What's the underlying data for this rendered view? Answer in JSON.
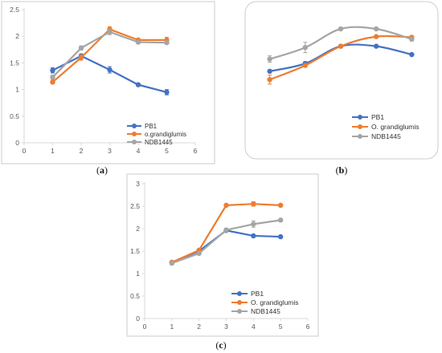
{
  "colors": {
    "PB1": "#4472C4",
    "orange": "#ED7D31",
    "gray": "#A5A5A5",
    "axis": "#d9d9d9",
    "panel_border": "#bfbfbf",
    "tick_text": "#595959"
  },
  "chart_data": [
    {
      "type": "line",
      "panel_label": "a",
      "x": [
        1,
        2,
        3,
        4,
        5
      ],
      "xlim": [
        0,
        6
      ],
      "xticks": [
        0,
        1,
        2,
        3,
        4,
        5,
        6
      ],
      "ylim": [
        0,
        2.5
      ],
      "yticks": [
        "0",
        "0.5",
        "1",
        "1.5",
        "2",
        "2.5"
      ],
      "show_axes": true,
      "legend_position": "bottom-right",
      "series": [
        {
          "name": "PB1",
          "color_key": "PB1",
          "values": [
            1.36,
            1.63,
            1.37,
            1.09,
            0.95
          ],
          "errors": [
            0.05,
            0.04,
            0.06,
            0.02,
            0.05
          ]
        },
        {
          "name": "o.grandiglumis",
          "color_key": "orange",
          "values": [
            1.14,
            1.6,
            2.13,
            1.93,
            1.93
          ],
          "errors": [
            0.03,
            0.05,
            0.05,
            0.03,
            0.05
          ]
        },
        {
          "name": "NDB1445",
          "color_key": "gray",
          "values": [
            1.23,
            1.78,
            2.08,
            1.89,
            1.88
          ],
          "errors": [
            0.04,
            0.04,
            0.05,
            0.03,
            0.03
          ]
        }
      ]
    },
    {
      "type": "line",
      "panel_label": "b",
      "x": [
        1,
        2,
        3,
        4,
        5
      ],
      "xlim": [
        0.6,
        5.4
      ],
      "xticks": [],
      "ylim": [
        0.9,
        2.5
      ],
      "yticks": [],
      "show_axes": false,
      "smooth": true,
      "legend_position": "bottom-center",
      "series": [
        {
          "name": "PB1",
          "color_key": "PB1",
          "values": [
            1.54,
            1.66,
            1.93,
            1.93,
            1.8
          ],
          "errors": [
            0,
            0.03,
            0,
            0,
            0
          ]
        },
        {
          "name": "O. grandiglumis",
          "color_key": "orange",
          "values": [
            1.41,
            1.63,
            1.93,
            2.08,
            2.07
          ],
          "errors": [
            0.07,
            0,
            0,
            0,
            0
          ]
        },
        {
          "name": "NDB1445",
          "color_key": "gray",
          "values": [
            1.73,
            1.91,
            2.2,
            2.2,
            2.04
          ],
          "errors": [
            0.05,
            0.08,
            0,
            0,
            0.03
          ]
        }
      ]
    },
    {
      "type": "line",
      "panel_label": "c",
      "x": [
        1,
        2,
        3,
        4,
        5
      ],
      "xlim": [
        0,
        6
      ],
      "xticks": [
        0,
        1,
        2,
        3,
        4,
        5,
        6
      ],
      "ylim": [
        0,
        3
      ],
      "yticks": [
        "0",
        "0.5",
        "1",
        "1.5",
        "2",
        "2.5",
        "3"
      ],
      "show_axes": true,
      "legend_position": "bottom-right",
      "series": [
        {
          "name": "PB1",
          "color_key": "PB1",
          "values": [
            1.25,
            1.5,
            1.96,
            1.84,
            1.82
          ],
          "errors": [
            0.02,
            0.03,
            0.03,
            0.02,
            0.02
          ]
        },
        {
          "name": "O. grandiglumis",
          "color_key": "orange",
          "values": [
            1.25,
            1.52,
            2.52,
            2.55,
            2.52
          ],
          "errors": [
            0.02,
            0.03,
            0.03,
            0.05,
            0.03
          ]
        },
        {
          "name": "NDB1445",
          "color_key": "gray",
          "values": [
            1.23,
            1.45,
            1.97,
            2.1,
            2.19
          ],
          "errors": [
            0.02,
            0.03,
            0.04,
            0.07,
            0.03
          ]
        }
      ]
    }
  ]
}
